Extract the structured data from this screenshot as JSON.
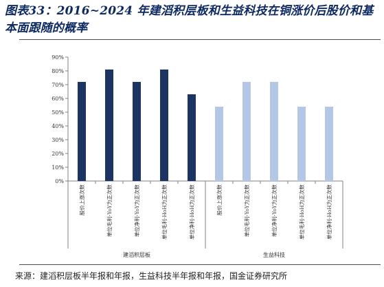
{
  "title": "图表33：2016~2024 年建滔积层板和生益科技在铜涨价后股价和基本面跟随的概率",
  "source": "来源：建滔积层板半年报和年报，生益科技半年报和年报，国金证券研究所",
  "colors": {
    "series_a": "#1b3461",
    "series_b": "#b4c7e7",
    "axis": "#808080"
  },
  "chart_data": {
    "type": "bar",
    "ylim": [
      0,
      90
    ],
    "yticks": [
      "0%",
      "10%",
      "20%",
      "30%",
      "40%",
      "50%",
      "60%",
      "70%",
      "80%",
      "90%"
    ],
    "groups": [
      {
        "name": "建滔积层板",
        "color": "#1b3461",
        "categories": [
          "股价上涨次数",
          "单位毛利-YoY为正次数",
          "单位净利-YoY为正次数",
          "单位毛利-HoH为正次数",
          "单位净利-HoH为正次数"
        ],
        "values": [
          72,
          81,
          72,
          81,
          63
        ]
      },
      {
        "name": "生益科技",
        "color": "#b4c7e7",
        "categories": [
          "股价上涨次数",
          "单位毛利-YoY为正次数",
          "单位净利-YoY为正次数",
          "单位毛利-HoH为正次数",
          "单位净利-HoH为正次数"
        ],
        "values": [
          54,
          72,
          72,
          54,
          54
        ]
      }
    ],
    "grid": false,
    "legend": "none"
  }
}
